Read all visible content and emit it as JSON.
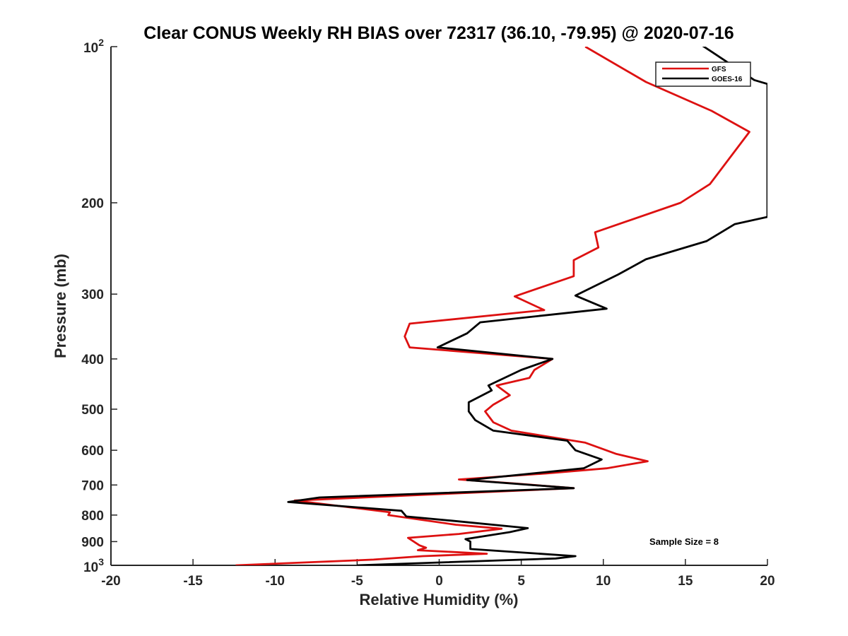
{
  "chart_data": {
    "type": "line",
    "title": "Clear CONUS Weekly RH BIAS over 72317 (36.10, -79.95) @ 2020-07-16",
    "xlabel": "Relative Humidity (%)",
    "ylabel": "Pressure (mb)",
    "xlim": [
      -20,
      20
    ],
    "ylim": [
      100,
      1000
    ],
    "y_scale": "log",
    "y_reversed": true,
    "grid": false,
    "legend_position": "top-right",
    "x_ticks": [
      -20,
      -15,
      -10,
      -5,
      0,
      5,
      10,
      15,
      20
    ],
    "x_tick_labels": [
      "-20",
      "-15",
      "-10",
      "-5",
      "0",
      "5",
      "10",
      "15",
      "20"
    ],
    "y_ticks": [
      200,
      300,
      400,
      500,
      600,
      700,
      800,
      900
    ],
    "y_tick_labels": [
      "200",
      "300",
      "400",
      "500",
      "600",
      "700",
      "800",
      "900"
    ],
    "y_tick_top": {
      "base": "10",
      "exp": "2"
    },
    "y_tick_bottom": {
      "base": "10",
      "exp": "3"
    },
    "annotation": "Sample Size = 8",
    "series": [
      {
        "name": "GFS",
        "color": "#dd1111",
        "points": [
          [
            8.9,
            100
          ],
          [
            12.6,
            117
          ],
          [
            16.6,
            133
          ],
          [
            18.9,
            146
          ],
          [
            16.5,
            184
          ],
          [
            14.7,
            200
          ],
          [
            9.5,
            228
          ],
          [
            9.7,
            244
          ],
          [
            8.2,
            258
          ],
          [
            8.2,
            277
          ],
          [
            4.6,
            303
          ],
          [
            6.4,
            322
          ],
          [
            -1.8,
            342
          ],
          [
            -2.1,
            362
          ],
          [
            -1.8,
            380
          ],
          [
            6.9,
            400
          ],
          [
            5.8,
            420
          ],
          [
            5.5,
            435
          ],
          [
            3.5,
            450
          ],
          [
            4.3,
            470
          ],
          [
            3.3,
            490
          ],
          [
            2.8,
            505
          ],
          [
            3.3,
            530
          ],
          [
            4.4,
            550
          ],
          [
            8.9,
            580
          ],
          [
            10.8,
            610
          ],
          [
            12.7,
            630
          ],
          [
            10.2,
            650
          ],
          [
            6.5,
            665
          ],
          [
            1.2,
            683
          ],
          [
            4.5,
            695
          ],
          [
            8.2,
            710
          ],
          [
            -8.8,
            750
          ],
          [
            -3.0,
            790
          ],
          [
            -3.1,
            800
          ],
          [
            1.0,
            835
          ],
          [
            3.8,
            850
          ],
          [
            1.2,
            870
          ],
          [
            -1.9,
            885
          ],
          [
            -1.2,
            915
          ],
          [
            -0.8,
            925
          ],
          [
            -1.3,
            935
          ],
          [
            2.9,
            950
          ],
          [
            -1.0,
            960
          ],
          [
            -4.0,
            975
          ],
          [
            -12.4,
            1000
          ]
        ]
      },
      {
        "name": "GOES-16",
        "color": "#000000",
        "points": [
          [
            15.5,
            97
          ],
          [
            19.2,
            116
          ],
          [
            20.0,
            118
          ],
          [
            20.0,
            213
          ],
          [
            18.0,
            220
          ],
          [
            16.3,
            237
          ],
          [
            12.6,
            257
          ],
          [
            10.9,
            275
          ],
          [
            8.3,
            302
          ],
          [
            10.2,
            320
          ],
          [
            2.5,
            340
          ],
          [
            1.7,
            357
          ],
          [
            -0.1,
            380
          ],
          [
            6.9,
            400
          ],
          [
            5.0,
            420
          ],
          [
            3.0,
            450
          ],
          [
            3.2,
            460
          ],
          [
            1.8,
            485
          ],
          [
            1.8,
            505
          ],
          [
            2.2,
            525
          ],
          [
            3.3,
            550
          ],
          [
            7.8,
            575
          ],
          [
            8.3,
            600
          ],
          [
            9.9,
            625
          ],
          [
            8.8,
            650
          ],
          [
            1.7,
            685
          ],
          [
            8.2,
            710
          ],
          [
            -7.3,
            740
          ],
          [
            -9.2,
            755
          ],
          [
            -2.3,
            785
          ],
          [
            -2.0,
            805
          ],
          [
            0.7,
            820
          ],
          [
            5.4,
            848
          ],
          [
            4.3,
            863
          ],
          [
            1.6,
            890
          ],
          [
            1.9,
            900
          ],
          [
            1.9,
            915
          ],
          [
            1.9,
            930
          ],
          [
            8.3,
            960
          ],
          [
            7.1,
            970
          ],
          [
            -5.0,
            1000
          ]
        ]
      }
    ]
  }
}
